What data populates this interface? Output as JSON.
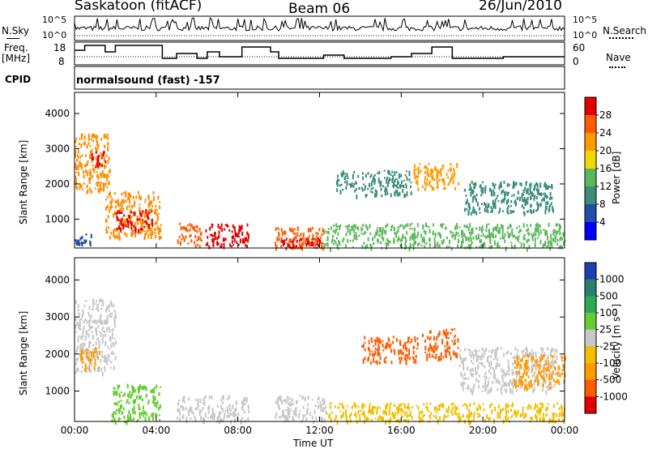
{
  "header": {
    "site": "Saskatoon (fitACF)",
    "beam": "Beam 06",
    "date": "26/Jun/2010"
  },
  "top_panels": {
    "nsky_label": "N.Sky",
    "nsearch_label": "N.Search",
    "freq_label": "Freq.",
    "freq_unit": "[MHz]",
    "nave_label": "Nave",
    "cpid_label": "CPID",
    "cpid_text": "normalsound (fast) -157",
    "count_ticks": [
      "10^5",
      "10^0"
    ],
    "freq_ticks": [
      "18",
      "8"
    ],
    "nave_ticks": [
      "60",
      "0"
    ]
  },
  "x_axis": {
    "label": "Time UT",
    "ticks": [
      "00:00",
      "04:00",
      "08:00",
      "12:00",
      "16:00",
      "20:00",
      "00:00"
    ],
    "range_hours": [
      0,
      24
    ]
  },
  "chart_data": [
    {
      "type": "heatmap",
      "panel": "power",
      "ylabel": "Slant Range [km]",
      "yticks": [
        1000,
        2000,
        3000,
        4000
      ],
      "ylim": [
        180,
        4600
      ],
      "colorbar_label": "Power [dB]",
      "colorbar_ticks": [
        "28",
        "24",
        "20",
        "16",
        "12",
        "8",
        "4"
      ],
      "colorbar_colors": [
        "#e00000",
        "#ff5a00",
        "#ff9a00",
        "#f2d800",
        "#5cb85c",
        "#3b8c7a",
        "#1f4fa8",
        "#0000ff"
      ],
      "regions": [
        {
          "t0": 0.0,
          "t1": 1.7,
          "r0": 1800,
          "r1": 3450,
          "color": "#ff8c00"
        },
        {
          "t0": 0.8,
          "t1": 1.5,
          "r0": 2500,
          "r1": 3000,
          "color": "#e00000"
        },
        {
          "t0": 0.0,
          "t1": 0.8,
          "r0": 300,
          "r1": 600,
          "color": "#1f4fa8"
        },
        {
          "t0": 1.5,
          "t1": 4.2,
          "r0": 500,
          "r1": 1800,
          "color": "#ff8c00"
        },
        {
          "t0": 2.0,
          "t1": 3.8,
          "r0": 700,
          "r1": 1300,
          "color": "#e00000"
        },
        {
          "t0": 5.0,
          "t1": 6.2,
          "r0": 250,
          "r1": 900,
          "color": "#ff5a00"
        },
        {
          "t0": 6.4,
          "t1": 8.5,
          "r0": 250,
          "r1": 900,
          "color": "#e00000"
        },
        {
          "t0": 9.8,
          "t1": 12.2,
          "r0": 200,
          "r1": 800,
          "color": "#ff5a00"
        },
        {
          "t0": 10.0,
          "t1": 12.0,
          "r0": 200,
          "r1": 500,
          "color": "#e00000"
        },
        {
          "t0": 12.2,
          "t1": 24.0,
          "r0": 200,
          "r1": 900,
          "color": "#5cb85c"
        },
        {
          "t0": 12.8,
          "t1": 16.5,
          "r0": 1700,
          "r1": 2400,
          "color": "#3b8c7a"
        },
        {
          "t0": 16.5,
          "t1": 18.8,
          "r0": 1900,
          "r1": 2600,
          "color": "#ff9a00"
        },
        {
          "t0": 19.0,
          "t1": 23.5,
          "r0": 1200,
          "r1": 2100,
          "color": "#3b8c7a"
        }
      ]
    },
    {
      "type": "heatmap",
      "panel": "velocity",
      "ylabel": "Slant Range [km]",
      "yticks": [
        1000,
        2000,
        3000,
        4000
      ],
      "ylim": [
        180,
        4600
      ],
      "colorbar_label": "Velocity [m s⁻¹]",
      "colorbar_ticks": [
        "1000",
        "500",
        "100",
        "25",
        "-25",
        "-100",
        "-500",
        "-1000"
      ],
      "colorbar_colors": [
        "#1f3fb0",
        "#2a7f6f",
        "#2eaa55",
        "#66cc33",
        "#c8c8c8",
        "#f0c000",
        "#ff9a00",
        "#ff5a00",
        "#e00000"
      ],
      "regions": [
        {
          "t0": 0.0,
          "t1": 2.0,
          "r0": 1500,
          "r1": 3500,
          "color": "#c8c8c8"
        },
        {
          "t0": 0.2,
          "t1": 1.2,
          "r0": 1600,
          "r1": 2200,
          "color": "#ff9a00"
        },
        {
          "t0": 1.8,
          "t1": 4.2,
          "r0": 200,
          "r1": 1200,
          "color": "#66cc33"
        },
        {
          "t0": 5.0,
          "t1": 8.5,
          "r0": 200,
          "r1": 900,
          "color": "#c8c8c8"
        },
        {
          "t0": 9.8,
          "t1": 12.3,
          "r0": 200,
          "r1": 900,
          "color": "#c8c8c8"
        },
        {
          "t0": 12.3,
          "t1": 24.0,
          "r0": 200,
          "r1": 700,
          "color": "#f0c000"
        },
        {
          "t0": 14.0,
          "t1": 16.8,
          "r0": 1800,
          "r1": 2500,
          "color": "#ff5a00"
        },
        {
          "t0": 17.0,
          "t1": 18.8,
          "r0": 1900,
          "r1": 2700,
          "color": "#ff5a00"
        },
        {
          "t0": 18.8,
          "t1": 23.6,
          "r0": 1000,
          "r1": 2200,
          "color": "#c8c8c8"
        },
        {
          "t0": 21.5,
          "t1": 24.0,
          "r0": 1100,
          "r1": 2000,
          "color": "#ff9a00"
        }
      ]
    }
  ]
}
